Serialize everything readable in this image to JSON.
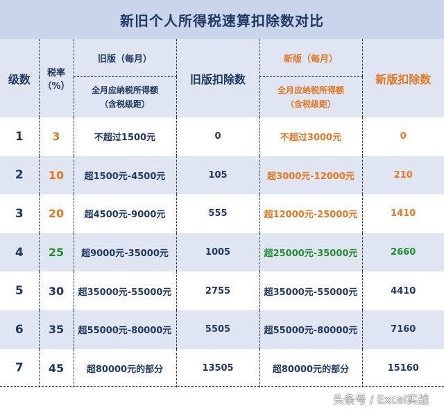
{
  "title": "新旧个人所得税速算扣除数对比",
  "header": {
    "level": "级数",
    "rate_line1": "税率",
    "rate_line2": "（%）",
    "old_group": "旧版（每月）",
    "old_range_line1": "全月应纳税所得额",
    "old_range_line2": "（含税级距）",
    "old_deduction": "旧版扣除数",
    "new_group": "新版（每月）",
    "new_range_line1": "全月应纳税所得额",
    "new_range_line2": "（含税级距）",
    "new_deduction": "新版扣除数"
  },
  "rows": [
    {
      "level": "1",
      "rate": "3",
      "old_range": "不超过1500元",
      "old_deduction": "0",
      "new_range": "不超过3000元",
      "new_deduction": "0"
    },
    {
      "level": "2",
      "rate": "10",
      "old_range": "超1500元-4500元",
      "old_deduction": "105",
      "new_range": "超3000元-12000元",
      "new_deduction": "210"
    },
    {
      "level": "3",
      "rate": "20",
      "old_range": "超4500元-9000元",
      "old_deduction": "555",
      "new_range": "超12000元-25000元",
      "new_deduction": "1410"
    },
    {
      "level": "4",
      "rate": "25",
      "old_range": "超9000元-35000元",
      "old_deduction": "1005",
      "new_range": "超25000元-35000元",
      "new_deduction": "2660"
    },
    {
      "level": "5",
      "rate": "30",
      "old_range": "超35000元-55000元",
      "old_deduction": "2755",
      "new_range": "超35000元-55000元",
      "new_deduction": "4410"
    },
    {
      "level": "6",
      "rate": "35",
      "old_range": "超55000元-80000元",
      "old_deduction": "5505",
      "new_range": "超55000元-80000元",
      "new_deduction": "7160"
    },
    {
      "level": "7",
      "rate": "45",
      "old_range": "超80000元的部分",
      "old_deduction": "13505",
      "new_range": "超80000元的部分",
      "new_deduction": "15160"
    }
  ],
  "watermark": "头条号 / Excel实战",
  "colors": {
    "navy": "#1f3864",
    "orange": "#e9771f",
    "green": "#1f8f2e",
    "band": "#dfe6f2",
    "title_bg": "#c9d5ea"
  }
}
